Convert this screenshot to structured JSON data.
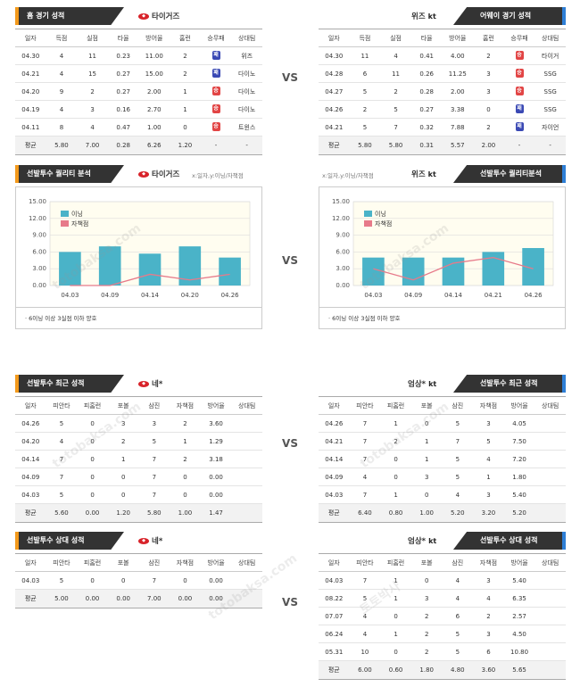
{
  "vs_label": "VS",
  "watermark": [
    "토토박사",
    "totobaksa.com"
  ],
  "record_cols": [
    "일자",
    "득점",
    "실점",
    "타율",
    "방어율",
    "홈런",
    "승무패",
    "상대팀"
  ],
  "pitch_cols": [
    "일자",
    "피안타",
    "피홈런",
    "포볼",
    "삼진",
    "자책점",
    "방어율",
    "상대팀"
  ],
  "sec1": {
    "left": {
      "title": "홈 경기 성적",
      "team": "타이거즈",
      "rows": [
        [
          "04.30",
          "4",
          "11",
          "0.23",
          "11.00",
          "2",
          "W",
          "위즈"
        ],
        [
          "04.21",
          "4",
          "15",
          "0.27",
          "15.00",
          "2",
          "W",
          "다이노"
        ],
        [
          "04.20",
          "9",
          "2",
          "0.27",
          "2.00",
          "1",
          "L",
          "다이노"
        ],
        [
          "04.19",
          "4",
          "3",
          "0.16",
          "2.70",
          "1",
          "L",
          "다이노"
        ],
        [
          "04.11",
          "8",
          "4",
          "0.47",
          "1.00",
          "0",
          "L",
          "트윈스"
        ]
      ],
      "avg": [
        "평균",
        "5.80",
        "7.00",
        "0.28",
        "6.26",
        "1.20",
        "-",
        "-"
      ]
    },
    "right": {
      "title": "어웨이 경기 성적",
      "team": "위즈",
      "team_logo": "kt",
      "rows": [
        [
          "04.30",
          "11",
          "4",
          "0.41",
          "4.00",
          "2",
          "L",
          "타이거"
        ],
        [
          "04.28",
          "6",
          "11",
          "0.26",
          "11.25",
          "3",
          "L",
          "SSG"
        ],
        [
          "04.27",
          "5",
          "2",
          "0.28",
          "2.00",
          "3",
          "L",
          "SSG"
        ],
        [
          "04.26",
          "2",
          "5",
          "0.27",
          "3.38",
          "0",
          "W",
          "SSG"
        ],
        [
          "04.21",
          "5",
          "7",
          "0.32",
          "7.88",
          "2",
          "W",
          "자이언"
        ]
      ],
      "avg": [
        "평균",
        "5.80",
        "5.80",
        "0.31",
        "5.57",
        "2.00",
        "-",
        "-"
      ]
    }
  },
  "sec2": {
    "left": {
      "title": "선발투수 퀄리티 분석",
      "team": "타이거즈",
      "axis_label": "x:일자,y:이닝/자책점",
      "note": "6이닝 이상 3실점 이하 양호",
      "legend": [
        "이닝",
        "자책점"
      ]
    },
    "right": {
      "title": "선발투수 퀄리티분석",
      "team": "위즈",
      "team_logo": "kt",
      "axis_label": "x:일자,y:이닝/자책점",
      "note": "6이닝 이상 3실점 이하 양호",
      "legend": [
        "이닝",
        "자책점"
      ]
    }
  },
  "chart_data": [
    {
      "type": "bar",
      "categories": [
        "04.03",
        "04.09",
        "04.14",
        "04.20",
        "04.26"
      ],
      "series": [
        {
          "name": "이닝",
          "values": [
            6,
            7,
            5.7,
            7,
            5
          ]
        },
        {
          "name": "자책점",
          "values": [
            0,
            0,
            2,
            1,
            2
          ]
        }
      ],
      "ylim": [
        0,
        15
      ],
      "yticks": [
        "0.00",
        "3.00",
        "6.00",
        "9.00",
        "12.00",
        "15.00"
      ],
      "colors": {
        "bar": "#4ab3c8",
        "line": "#e77a8a"
      }
    },
    {
      "type": "bar",
      "categories": [
        "04.03",
        "04.09",
        "04.14",
        "04.21",
        "04.26"
      ],
      "series": [
        {
          "name": "이닝",
          "values": [
            5,
            5,
            5,
            6,
            6.7
          ]
        },
        {
          "name": "자책점",
          "values": [
            3,
            1,
            4,
            5,
            3
          ]
        }
      ],
      "ylim": [
        0,
        15
      ],
      "yticks": [
        "0.00",
        "3.00",
        "6.00",
        "9.00",
        "12.00",
        "15.00"
      ],
      "colors": {
        "bar": "#4ab3c8",
        "line": "#e77a8a"
      }
    }
  ],
  "sec3": {
    "left": {
      "title": "선발투수 최근 성적",
      "team": "네*",
      "rows": [
        [
          "04.26",
          "5",
          "0",
          "3",
          "3",
          "2",
          "3.60",
          ""
        ],
        [
          "04.20",
          "4",
          "0",
          "2",
          "5",
          "1",
          "1.29",
          ""
        ],
        [
          "04.14",
          "7",
          "0",
          "1",
          "7",
          "2",
          "3.18",
          ""
        ],
        [
          "04.09",
          "7",
          "0",
          "0",
          "7",
          "0",
          "0.00",
          ""
        ],
        [
          "04.03",
          "5",
          "0",
          "0",
          "7",
          "0",
          "0.00",
          ""
        ]
      ],
      "avg": [
        "평균",
        "5.60",
        "0.00",
        "1.20",
        "5.80",
        "1.00",
        "1.47",
        ""
      ]
    },
    "right": {
      "title": "선발투수 최근 성적",
      "team": "엄상*",
      "team_logo": "kt",
      "rows": [
        [
          "04.26",
          "7",
          "1",
          "0",
          "5",
          "3",
          "4.05",
          ""
        ],
        [
          "04.21",
          "7",
          "2",
          "1",
          "7",
          "5",
          "7.50",
          ""
        ],
        [
          "04.14",
          "7",
          "0",
          "1",
          "5",
          "4",
          "7.20",
          ""
        ],
        [
          "04.09",
          "4",
          "0",
          "3",
          "5",
          "1",
          "1.80",
          ""
        ],
        [
          "04.03",
          "7",
          "1",
          "0",
          "4",
          "3",
          "5.40",
          ""
        ]
      ],
      "avg": [
        "평균",
        "6.40",
        "0.80",
        "1.00",
        "5.20",
        "3.20",
        "5.20",
        ""
      ]
    }
  },
  "sec4": {
    "left": {
      "title": "선발투수 상대 성적",
      "team": "네*",
      "rows": [
        [
          "04.03",
          "5",
          "0",
          "0",
          "7",
          "0",
          "0.00",
          ""
        ]
      ],
      "avg": [
        "평균",
        "5.00",
        "0.00",
        "0.00",
        "7.00",
        "0.00",
        "0.00",
        ""
      ]
    },
    "right": {
      "title": "선발투수 상대 성적",
      "team": "엄상*",
      "team_logo": "kt",
      "rows": [
        [
          "04.03",
          "7",
          "1",
          "0",
          "4",
          "3",
          "5.40",
          ""
        ],
        [
          "08.22",
          "5",
          "1",
          "3",
          "4",
          "4",
          "6.35",
          ""
        ],
        [
          "07.07",
          "4",
          "0",
          "2",
          "6",
          "2",
          "2.57",
          ""
        ],
        [
          "06.24",
          "4",
          "1",
          "2",
          "5",
          "3",
          "4.50",
          ""
        ],
        [
          "05.31",
          "10",
          "0",
          "2",
          "5",
          "6",
          "10.80",
          ""
        ]
      ],
      "avg": [
        "평균",
        "6.00",
        "0.60",
        "1.80",
        "4.80",
        "3.60",
        "5.65",
        ""
      ]
    }
  }
}
